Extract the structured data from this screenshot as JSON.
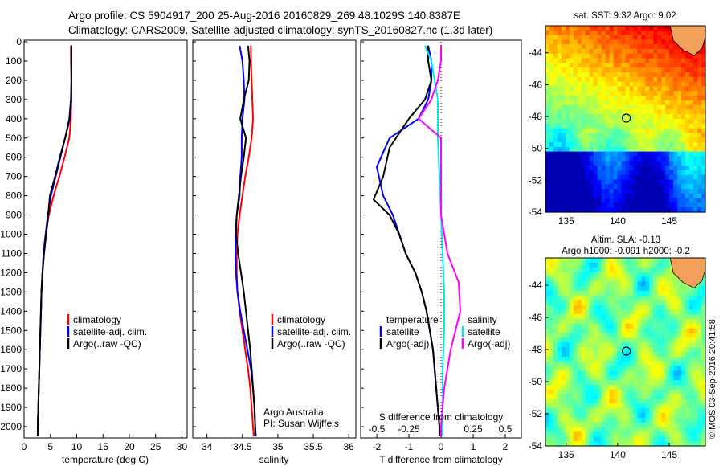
{
  "header": {
    "line1": "Argo profile: CS 5904917_200 25-Aug-2016 20160829_269 48.1029S 140.8387E",
    "line2": "Climatology: CARS2009. Satellite-adjusted climatology: synTS_20160827.nc (1.3d later)"
  },
  "colors": {
    "climatology": "#ff0000",
    "satellite": "#0000ff",
    "argo": "#000000",
    "salinity_satellite": "#00eaea",
    "salinity_argo": "#ff00ff"
  },
  "chart_data": [
    {
      "type": "line",
      "id": "temperature",
      "xlabel": "temperature (deg C)",
      "xlim": [
        0,
        31
      ],
      "xticks": [
        0,
        5,
        10,
        15,
        20,
        25,
        30
      ],
      "ylim": [
        2050,
        0
      ],
      "yticks": [
        0,
        100,
        200,
        300,
        400,
        500,
        600,
        700,
        800,
        900,
        1000,
        1100,
        1200,
        1300,
        1400,
        1500,
        1600,
        1700,
        1800,
        1900,
        2000
      ],
      "legend": [
        "climatology",
        "satellite-adj. clim.",
        "Argo(..raw -QC)"
      ],
      "series": [
        {
          "name": "climatology",
          "color": "#ff0000",
          "points": [
            [
              8.9,
              20
            ],
            [
              8.9,
              100
            ],
            [
              9.0,
              200
            ],
            [
              9.0,
              300
            ],
            [
              8.9,
              400
            ],
            [
              8.6,
              500
            ],
            [
              7.7,
              600
            ],
            [
              6.7,
              700
            ],
            [
              5.6,
              800
            ],
            [
              4.7,
              900
            ],
            [
              4.1,
              1000
            ],
            [
              3.7,
              1100
            ],
            [
              3.5,
              1200
            ],
            [
              3.3,
              1300
            ],
            [
              3.2,
              1400
            ],
            [
              3.1,
              1500
            ],
            [
              3.0,
              1600
            ],
            [
              2.9,
              1700
            ],
            [
              2.8,
              1800
            ],
            [
              2.7,
              1900
            ],
            [
              2.6,
              2000
            ],
            [
              2.6,
              2050
            ]
          ]
        },
        {
          "name": "satellite-adj. clim.",
          "color": "#0000ff",
          "points": [
            [
              9.0,
              20
            ],
            [
              9.0,
              100
            ],
            [
              9.0,
              200
            ],
            [
              9.0,
              300
            ],
            [
              8.7,
              400
            ],
            [
              7.8,
              500
            ],
            [
              6.9,
              600
            ],
            [
              6.0,
              700
            ],
            [
              5.1,
              800
            ],
            [
              4.5,
              900
            ],
            [
              4.1,
              1000
            ],
            [
              3.7,
              1100
            ],
            [
              3.5,
              1200
            ],
            [
              3.3,
              1300
            ],
            [
              3.2,
              1400
            ],
            [
              3.1,
              1500
            ],
            [
              3.0,
              1600
            ],
            [
              2.9,
              1700
            ],
            [
              2.8,
              1800
            ],
            [
              2.7,
              1900
            ],
            [
              2.6,
              2000
            ],
            [
              2.6,
              2050
            ]
          ]
        },
        {
          "name": "Argo(..raw -QC)",
          "color": "#000000",
          "points": [
            [
              9.0,
              20
            ],
            [
              9.0,
              100
            ],
            [
              9.0,
              200
            ],
            [
              8.9,
              300
            ],
            [
              8.6,
              400
            ],
            [
              7.8,
              500
            ],
            [
              6.8,
              600
            ],
            [
              5.9,
              700
            ],
            [
              4.9,
              800
            ],
            [
              4.6,
              900
            ],
            [
              4.2,
              1000
            ],
            [
              3.8,
              1100
            ],
            [
              3.5,
              1200
            ],
            [
              3.3,
              1300
            ],
            [
              3.2,
              1400
            ],
            [
              3.1,
              1500
            ],
            [
              3.0,
              1600
            ],
            [
              2.9,
              1700
            ],
            [
              2.8,
              1800
            ],
            [
              2.7,
              1900
            ],
            [
              2.6,
              2000
            ],
            [
              2.6,
              2050
            ]
          ]
        }
      ]
    },
    {
      "type": "line",
      "id": "salinity",
      "xlabel": "salinity",
      "xlim": [
        33.8,
        36.1
      ],
      "xticks": [
        34,
        34.5,
        35,
        35.5,
        36
      ],
      "ylim": [
        2050,
        0
      ],
      "legend": [
        "climatology",
        "satellite-adj. clim.",
        "Argo(..raw -QC)"
      ],
      "annotations": [
        "Argo Australia",
        "PI: Susan Wijffels"
      ],
      "series": [
        {
          "name": "climatology",
          "color": "#ff0000",
          "points": [
            [
              34.62,
              20
            ],
            [
              34.62,
              100
            ],
            [
              34.63,
              200
            ],
            [
              34.64,
              300
            ],
            [
              34.65,
              400
            ],
            [
              34.63,
              500
            ],
            [
              34.59,
              600
            ],
            [
              34.54,
              700
            ],
            [
              34.5,
              800
            ],
            [
              34.46,
              900
            ],
            [
              34.43,
              1000
            ],
            [
              34.42,
              1100
            ],
            [
              34.42,
              1200
            ],
            [
              34.43,
              1300
            ],
            [
              34.46,
              1400
            ],
            [
              34.5,
              1500
            ],
            [
              34.54,
              1600
            ],
            [
              34.58,
              1700
            ],
            [
              34.61,
              1800
            ],
            [
              34.63,
              1900
            ],
            [
              34.65,
              2000
            ],
            [
              34.66,
              2050
            ]
          ]
        },
        {
          "name": "satellite-adj. clim.",
          "color": "#0000ff",
          "points": [
            [
              34.46,
              20
            ],
            [
              34.5,
              100
            ],
            [
              34.52,
              200
            ],
            [
              34.53,
              300
            ],
            [
              34.5,
              400
            ],
            [
              34.49,
              500
            ],
            [
              34.49,
              600
            ],
            [
              34.47,
              700
            ],
            [
              34.46,
              800
            ],
            [
              34.42,
              900
            ],
            [
              34.4,
              1000
            ],
            [
              34.4,
              1100
            ],
            [
              34.41,
              1200
            ],
            [
              34.43,
              1300
            ],
            [
              34.47,
              1400
            ],
            [
              34.52,
              1500
            ],
            [
              34.57,
              1600
            ],
            [
              34.62,
              1700
            ],
            [
              34.65,
              1800
            ],
            [
              34.67,
              1900
            ],
            [
              34.68,
              2000
            ],
            [
              34.69,
              2050
            ]
          ]
        },
        {
          "name": "Argo(..raw -QC)",
          "color": "#000000",
          "points": [
            [
              34.58,
              20
            ],
            [
              34.6,
              100
            ],
            [
              34.59,
              200
            ],
            [
              34.52,
              300
            ],
            [
              34.47,
              400
            ],
            [
              34.55,
              500
            ],
            [
              34.52,
              600
            ],
            [
              34.48,
              700
            ],
            [
              34.45,
              800
            ],
            [
              34.42,
              900
            ],
            [
              34.41,
              1000
            ],
            [
              34.44,
              1100
            ],
            [
              34.48,
              1200
            ],
            [
              34.52,
              1300
            ],
            [
              34.55,
              1400
            ],
            [
              34.58,
              1500
            ],
            [
              34.61,
              1600
            ],
            [
              34.63,
              1700
            ],
            [
              34.65,
              1800
            ],
            [
              34.67,
              1900
            ],
            [
              34.68,
              2000
            ],
            [
              34.68,
              2050
            ]
          ]
        }
      ]
    },
    {
      "type": "line",
      "id": "differences",
      "xlabel": "T difference from climatology",
      "xlabel_top": "S difference from climatology",
      "xlim": [
        -2.5,
        2.5
      ],
      "xticks": [
        -2,
        -1,
        0,
        1,
        2
      ],
      "xticks_top": [
        -0.5,
        -0.25,
        0,
        0.25,
        0.5
      ],
      "ylim": [
        2050,
        0
      ],
      "legend_temperature": {
        "title": "temperature",
        "items": [
          "satellite",
          "Argo(-adj)"
        ]
      },
      "legend_salinity": {
        "title": "salinity",
        "items": [
          "satellite",
          "Argo(-adj)"
        ]
      },
      "series": [
        {
          "name": "temperature satellite",
          "color": "#0000ff",
          "points": [
            [
              -0.4,
              20
            ],
            [
              -0.3,
              100
            ],
            [
              -0.3,
              200
            ],
            [
              -0.4,
              300
            ],
            [
              -0.7,
              400
            ],
            [
              -1.6,
              500
            ],
            [
              -2.0,
              650
            ],
            [
              -1.8,
              800
            ],
            [
              -1.5,
              900
            ],
            [
              -1.3,
              1000
            ],
            [
              -1.1,
              1100
            ],
            [
              -0.8,
              1200
            ],
            [
              -0.6,
              1300
            ],
            [
              -0.45,
              1400
            ],
            [
              -0.35,
              1500
            ],
            [
              -0.25,
              1600
            ],
            [
              -0.2,
              1700
            ],
            [
              -0.15,
              1800
            ],
            [
              -0.1,
              1900
            ],
            [
              -0.05,
              2000
            ],
            [
              -0.05,
              2050
            ]
          ]
        },
        {
          "name": "temperature Argo(-adj)",
          "color": "#000000",
          "points": [
            [
              -0.4,
              20
            ],
            [
              -0.4,
              100
            ],
            [
              -0.3,
              200
            ],
            [
              -0.5,
              300
            ],
            [
              -1.0,
              400
            ],
            [
              -1.6,
              550
            ],
            [
              -1.8,
              700
            ],
            [
              -2.1,
              820
            ],
            [
              -1.6,
              900
            ],
            [
              -1.3,
              1000
            ],
            [
              -1.1,
              1100
            ],
            [
              -0.8,
              1200
            ],
            [
              -0.6,
              1300
            ],
            [
              -0.45,
              1400
            ],
            [
              -0.35,
              1500
            ],
            [
              -0.25,
              1600
            ],
            [
              -0.2,
              1700
            ],
            [
              -0.15,
              1800
            ],
            [
              -0.1,
              1900
            ],
            [
              -0.05,
              2000
            ],
            [
              -0.05,
              2050
            ]
          ]
        },
        {
          "name": "salinity satellite",
          "color": "#00eaea",
          "points": [
            [
              -0.5,
              20
            ],
            [
              -0.3,
              100
            ],
            [
              -0.2,
              200
            ],
            [
              -0.1,
              300
            ],
            [
              -0.1,
              400
            ],
            [
              -0.1,
              500
            ],
            [
              -0.05,
              700
            ],
            [
              0.0,
              900
            ],
            [
              0.05,
              1100
            ],
            [
              0.1,
              1300
            ],
            [
              0.1,
              1500
            ],
            [
              0.05,
              1700
            ],
            [
              0.05,
              1900
            ],
            [
              0.05,
              2050
            ]
          ]
        },
        {
          "name": "salinity Argo(-adj)",
          "color": "#ff00ff",
          "points": [
            [
              0.0,
              20
            ],
            [
              0.0,
              100
            ],
            [
              -0.1,
              200
            ],
            [
              -0.3,
              300
            ],
            [
              -0.7,
              400
            ],
            [
              0.0,
              500
            ],
            [
              0.0,
              700
            ],
            [
              0.0,
              900
            ],
            [
              0.2,
              1100
            ],
            [
              0.55,
              1250
            ],
            [
              0.6,
              1400
            ],
            [
              0.3,
              1600
            ],
            [
              0.1,
              1800
            ],
            [
              0.0,
              2000
            ],
            [
              0.0,
              2050
            ]
          ]
        }
      ]
    },
    {
      "type": "heatmap",
      "id": "sst-map",
      "title": "sat. SST: 9.32 Argo: 9.02",
      "xticks": [
        135,
        140,
        145
      ],
      "yticks": [
        -44,
        -46,
        -48,
        -50,
        -52,
        -54
      ],
      "xlim": [
        133,
        148.5
      ],
      "ylim": [
        -54,
        -42.3
      ],
      "marker": {
        "lon": 140.84,
        "lat": -48.1
      }
    },
    {
      "type": "heatmap",
      "id": "sla-map",
      "title": "Altim. SLA: -0.13",
      "subtitle": "Argo h1000: -0.091 h2000: -0.2",
      "xticks": [
        135,
        140,
        145
      ],
      "yticks": [
        -44,
        -46,
        -48,
        -50,
        -52,
        -54
      ],
      "xlim": [
        133,
        148.5
      ],
      "ylim": [
        -54,
        -42.3
      ],
      "marker": {
        "lon": 140.84,
        "lat": -48.1
      }
    }
  ],
  "credit": "©IMOS 03-Sep-2016 20:41:58"
}
